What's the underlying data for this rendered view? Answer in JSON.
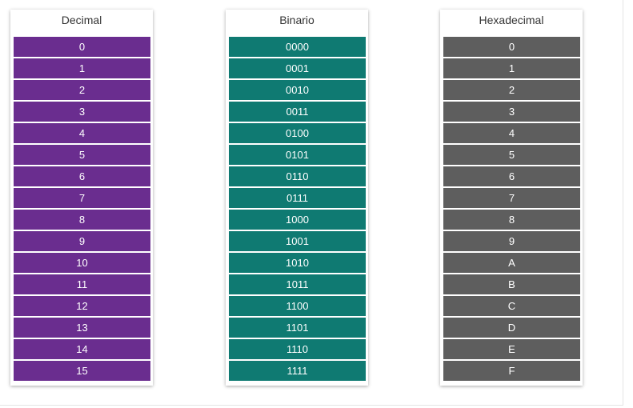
{
  "columns": [
    {
      "header": "Decimal",
      "color": "#6a2d8f",
      "cells": [
        "0",
        "1",
        "2",
        "3",
        "4",
        "5",
        "6",
        "7",
        "8",
        "9",
        "10",
        "11",
        "12",
        "13",
        "14",
        "15"
      ]
    },
    {
      "header": "Binario",
      "color": "#0f7a72",
      "cells": [
        "0000",
        "0001",
        "0010",
        "0011",
        "0100",
        "0101",
        "0110",
        "0111",
        "1000",
        "1001",
        "1010",
        "1011",
        "1100",
        "1101",
        "1110",
        "1111"
      ]
    },
    {
      "header": "Hexadecimal",
      "color": "#5e5e5e",
      "cells": [
        "0",
        "1",
        "2",
        "3",
        "4",
        "5",
        "6",
        "7",
        "8",
        "9",
        "A",
        "B",
        "C",
        "D",
        "E",
        "F"
      ]
    }
  ]
}
